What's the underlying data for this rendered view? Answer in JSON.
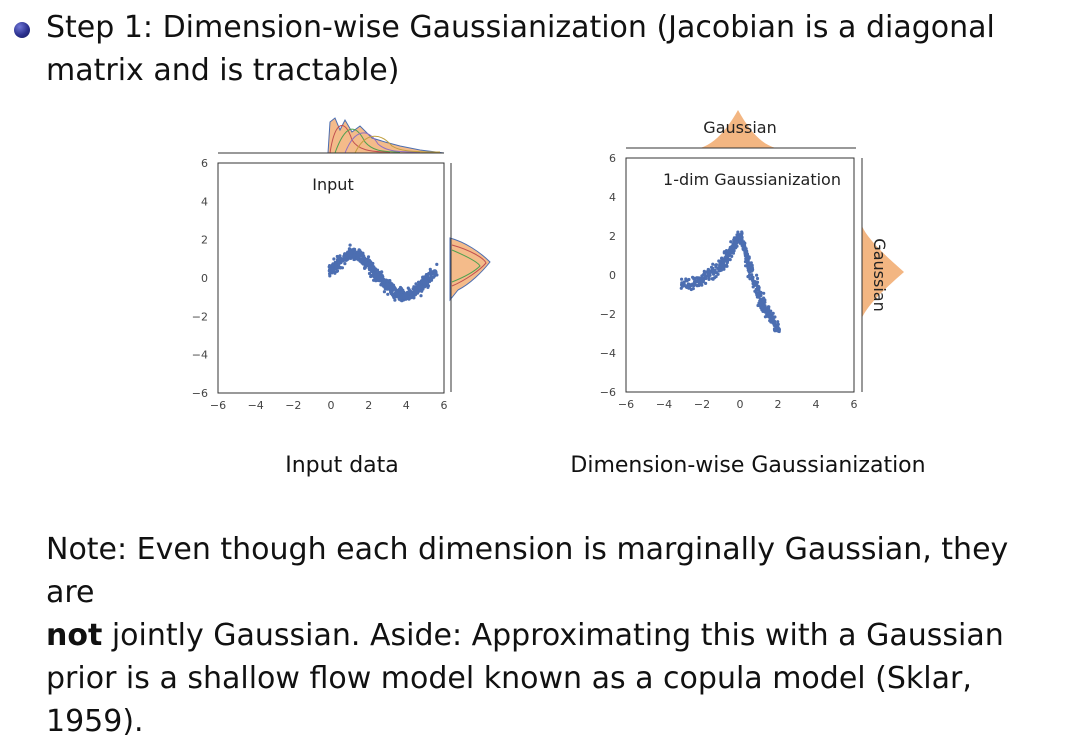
{
  "step": {
    "text": "Step 1: Dimension-wise Gaussianization (Jacobian is a diagonal matrix and is tractable)"
  },
  "captions": {
    "left": "Input data",
    "right": "Dimension-wise Gaussianization"
  },
  "note": {
    "prefix": "Note: Even though each dimension is marginally Gaussian, they are",
    "bold": "not",
    "suffix": " jointly Gaussian. Aside: Approximating this with a Gaussian prior is a shallow flow model known as a copula model (Sklar, 1959)."
  },
  "colors": {
    "scatter": "#4c6eb1",
    "hist": "#f0a463",
    "bullet": "#2c318f"
  },
  "chart_data": [
    {
      "type": "scatter",
      "title": "Input",
      "xlim": [
        -6,
        6
      ],
      "ylim": [
        -6,
        6
      ],
      "xticks": [
        "−6",
        "−4",
        "−2",
        "0",
        "2",
        "4",
        "6"
      ],
      "yticks": [
        "6",
        "4",
        "2",
        "0",
        "−2",
        "−4",
        "−6"
      ],
      "series": [
        {
          "x": [
            0,
            0.5,
            1,
            1.5,
            2,
            2.5,
            3,
            3.5,
            4,
            4.5,
            5,
            5.5
          ],
          "y": [
            0.4,
            0.9,
            1.3,
            1.2,
            0.7,
            0.1,
            -0.4,
            -0.8,
            -0.9,
            -0.7,
            -0.2,
            0.3
          ]
        }
      ],
      "marginal_top": {
        "label": ""
      },
      "marginal_right": {
        "label": ""
      }
    },
    {
      "type": "scatter",
      "title": "1-dim Gaussianization",
      "xlim": [
        -6,
        6
      ],
      "ylim": [
        -6,
        6
      ],
      "xticks": [
        "−6",
        "−4",
        "−2",
        "0",
        "2",
        "4",
        "6"
      ],
      "yticks": [
        "6",
        "4",
        "2",
        "0",
        "−2",
        "−4",
        "−6"
      ],
      "series": [
        {
          "x": [
            -3,
            -2,
            -1,
            -0.5,
            0,
            0.5,
            1,
            1.5,
            2
          ],
          "y": [
            -0.5,
            -0.3,
            0.5,
            1.2,
            2.0,
            0.5,
            -1.0,
            -2.0,
            -2.8
          ]
        }
      ],
      "marginal_top": {
        "label": "Gaussian"
      },
      "marginal_right": {
        "label": "Gaussian"
      }
    }
  ]
}
